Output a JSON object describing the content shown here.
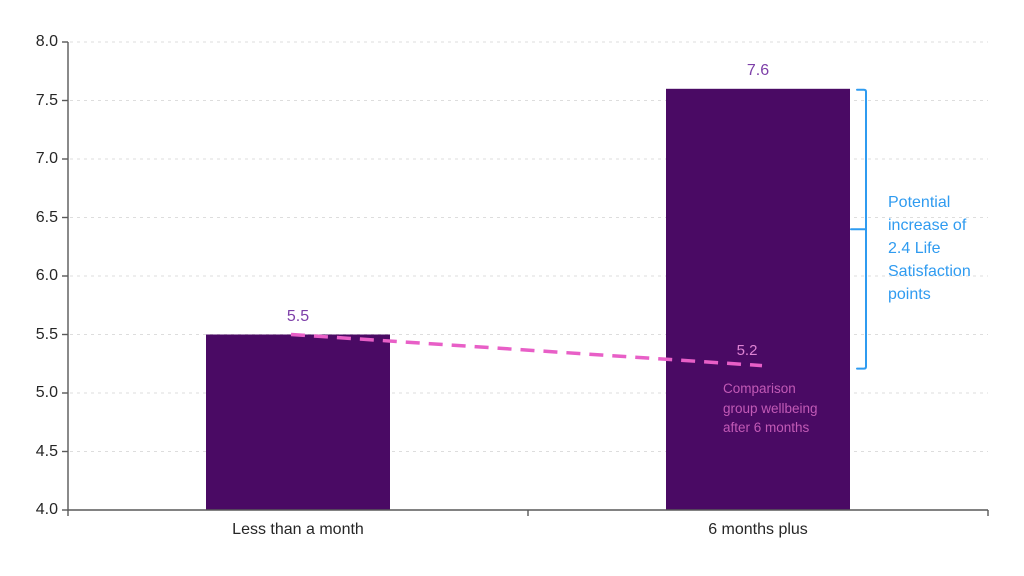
{
  "chart_data": {
    "type": "bar",
    "categories": [
      "Less than a month",
      "6 months plus"
    ],
    "values": [
      5.5,
      7.6
    ],
    "bar_value_labels": [
      "5.5",
      "7.6"
    ],
    "ylim": [
      4.0,
      8.0
    ],
    "ytick_step": 0.5,
    "ytick_labels": [
      "8.0",
      "7.5",
      "7.0",
      "6.5",
      "6.0",
      "5.5",
      "5.0",
      "4.5",
      "4.0"
    ],
    "grid": "horizontal dashed gridlines at each 0.5",
    "legend": "none",
    "title": "",
    "xlabel": "",
    "ylabel": "",
    "comparison_line": {
      "start_value": 5.5,
      "end_value": 5.2,
      "end_label": "5.2",
      "note_lines": [
        "Comparison",
        "group wellbeing",
        "after 6 months"
      ]
    },
    "bracket_annotation": {
      "from_value": 7.6,
      "to_value": 5.2,
      "lines": [
        "Potential",
        "increase of",
        "2.4  Life",
        "Satisfaction",
        "points"
      ]
    },
    "colors": {
      "bar": "#4A0A64",
      "bar_value_label": "#7D3FA8",
      "dashed_line": "#E85FC7",
      "line_end_label": "#DE83D3",
      "note_text": "#C25AB6",
      "bracket_and_annotation": "#2F9BF0",
      "gridline": "#DDDDDD",
      "axis": "#595959",
      "tick_label": "#262626"
    }
  }
}
